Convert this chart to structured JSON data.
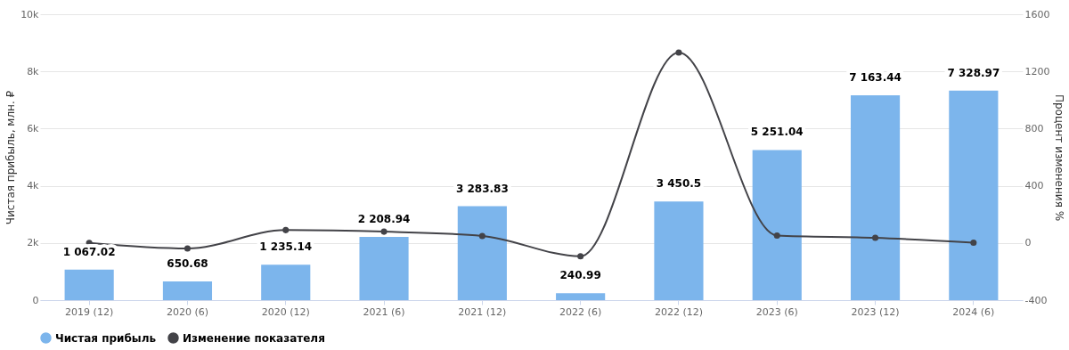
{
  "chart_data": {
    "type": "bar",
    "categories": [
      "2019 (12)",
      "2020 (6)",
      "2020 (12)",
      "2021 (6)",
      "2021 (12)",
      "2022 (6)",
      "2022 (12)",
      "2023 (6)",
      "2023 (12)",
      "2024 (6)"
    ],
    "series": [
      {
        "name": "Чистая прибыль",
        "color": "#7cb5ec",
        "values": [
          1067.02,
          650.68,
          1235.14,
          2208.94,
          3283.83,
          240.99,
          3450.5,
          5251.04,
          7163.44,
          7328.97
        ],
        "value_labels": [
          "1 067.02",
          "650.68",
          "1 235.14",
          "2 208.94",
          "3 283.83",
          "240.99",
          "3 450.5",
          "5 251.04",
          "7 163.44",
          "7 328.97"
        ]
      },
      {
        "name": "Изменение показателя",
        "type": "line",
        "axis": "y2",
        "color": "#434348",
        "values": [
          0,
          -39,
          90,
          79,
          49,
          -93,
          1332,
          52,
          36,
          2
        ]
      }
    ],
    "ylabel": "Чистая прибыль, млн. ₽",
    "y2label": "Процент изменения %",
    "ylim": [
      0,
      10000
    ],
    "yticks": [
      0,
      {
        "value": 2000,
        "label": "2k"
      },
      {
        "value": 4000,
        "label": "4k"
      },
      {
        "value": 6000,
        "label": "6k"
      },
      {
        "value": 8000,
        "label": "8k"
      },
      {
        "value": 10000,
        "label": "10k"
      }
    ],
    "y2lim": [
      -400,
      1600
    ],
    "y2ticks": [
      -400,
      0,
      400,
      800,
      1200,
      1600
    ],
    "grid": "y",
    "legend": "bottom",
    "marker": "circle"
  }
}
